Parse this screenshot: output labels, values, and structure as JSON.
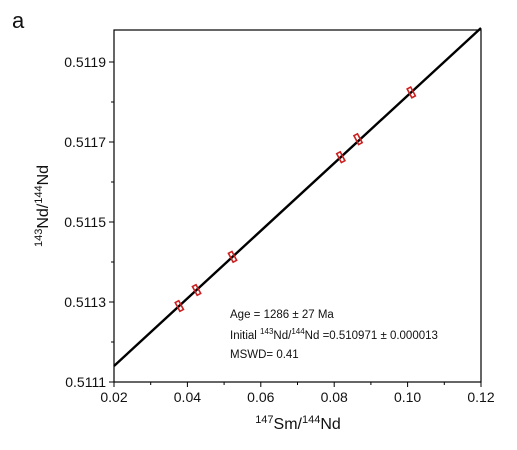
{
  "panel_label": "a",
  "colors": {
    "line": "#000000",
    "marker": "#cc1f1f",
    "axis": "#000000"
  },
  "annotations": {
    "age": "Age = 1286 ± 27 Ma",
    "initial_prefix": "Initial ",
    "initial_sup1": "143",
    "initial_mid": "Nd/",
    "initial_sup2": "144",
    "initial_suffix": "Nd =0.510971 ± 0.000013",
    "mswd": "MSWD= 0.41"
  },
  "chart_data": {
    "type": "scatter",
    "title": "",
    "xlabel": {
      "sup": "147",
      "main": "Sm/",
      "sup2": "144",
      "end": "Nd"
    },
    "ylabel": {
      "sup": "143",
      "main": "Nd/",
      "sup2": "144",
      "end": "Nd"
    },
    "xlim": [
      0.02,
      0.12
    ],
    "ylim": [
      0.5111,
      0.51198
    ],
    "x_ticks": [
      0.02,
      0.04,
      0.06,
      0.08,
      0.1,
      0.12
    ],
    "x_tick_labels": [
      "0.02",
      "0.04",
      "0.06",
      "0.08",
      "0.10",
      "0.12"
    ],
    "y_ticks": [
      0.5111,
      0.5113,
      0.5115,
      0.5117,
      0.5119
    ],
    "y_tick_labels": [
      "0.5111",
      "0.5113",
      "0.5115",
      "0.5117",
      "0.5119"
    ],
    "grid": false,
    "regression_line": {
      "x": [
        0.02,
        0.12
      ],
      "y": [
        0.51114,
        0.511985
      ]
    },
    "points": [
      {
        "x": 0.0378,
        "y": 0.51129
      },
      {
        "x": 0.0425,
        "y": 0.51133
      },
      {
        "x": 0.0523,
        "y": 0.511413
      },
      {
        "x": 0.0818,
        "y": 0.511662
      },
      {
        "x": 0.0865,
        "y": 0.511707
      },
      {
        "x": 0.101,
        "y": 0.511824
      }
    ]
  }
}
